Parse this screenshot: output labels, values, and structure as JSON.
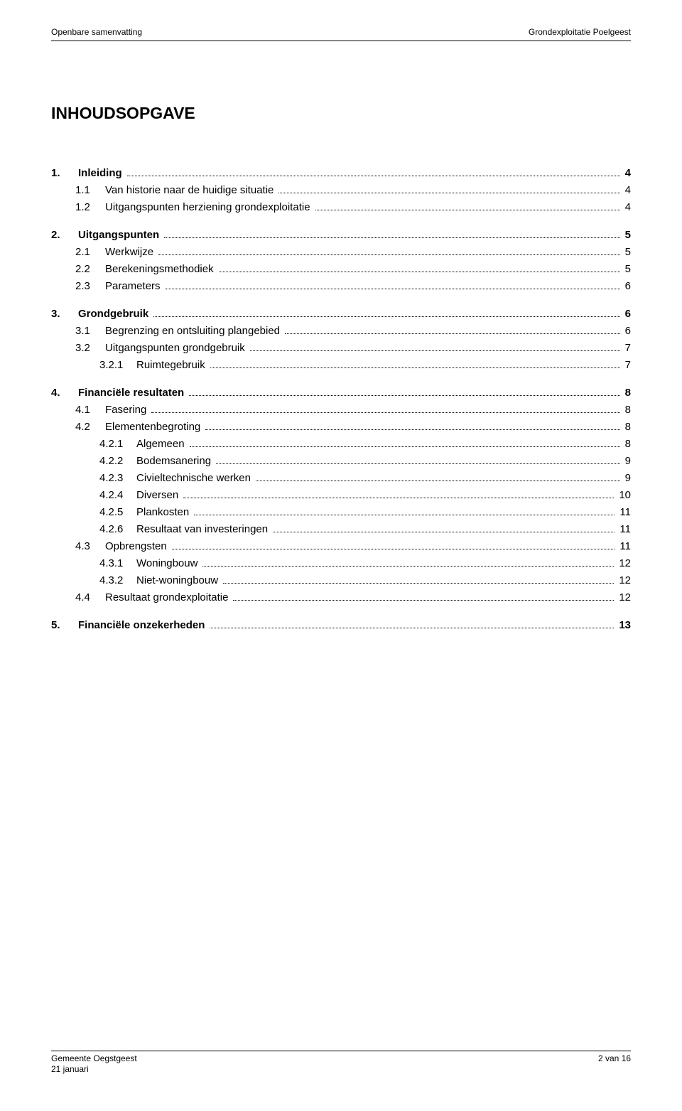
{
  "header": {
    "left": "Openbare samenvatting",
    "right": "Grondexploitatie Poelgeest"
  },
  "title": "INHOUDSOPGAVE",
  "toc": [
    {
      "level": 1,
      "num": "1.",
      "label": "Inleiding",
      "page": "4"
    },
    {
      "level": 2,
      "num": "1.1",
      "label": "Van historie naar de huidige situatie",
      "page": "4"
    },
    {
      "level": 2,
      "num": "1.2",
      "label": "Uitgangspunten herziening grondexploitatie",
      "page": "4"
    },
    {
      "level": 1,
      "num": "2.",
      "label": "Uitgangspunten",
      "page": "5"
    },
    {
      "level": 2,
      "num": "2.1",
      "label": "Werkwijze",
      "page": "5"
    },
    {
      "level": 2,
      "num": "2.2",
      "label": "Berekeningsmethodiek",
      "page": "5"
    },
    {
      "level": 2,
      "num": "2.3",
      "label": "Parameters",
      "page": "6"
    },
    {
      "level": 1,
      "num": "3.",
      "label": "Grondgebruik",
      "page": "6"
    },
    {
      "level": 2,
      "num": "3.1",
      "label": "Begrenzing en ontsluiting plangebied",
      "page": "6"
    },
    {
      "level": 2,
      "num": "3.2",
      "label": "Uitgangspunten grondgebruik",
      "page": "7"
    },
    {
      "level": 3,
      "num": "3.2.1",
      "label": "Ruimtegebruik",
      "page": "7"
    },
    {
      "level": 1,
      "num": "4.",
      "label": "Financiële resultaten",
      "page": "8"
    },
    {
      "level": 2,
      "num": "4.1",
      "label": "Fasering",
      "page": "8"
    },
    {
      "level": 2,
      "num": "4.2",
      "label": "Elementenbegroting",
      "page": "8"
    },
    {
      "level": 3,
      "num": "4.2.1",
      "label": "Algemeen",
      "page": "8"
    },
    {
      "level": 3,
      "num": "4.2.2",
      "label": "Bodemsanering",
      "page": "9"
    },
    {
      "level": 3,
      "num": "4.2.3",
      "label": "Civieltechnische werken",
      "page": "9"
    },
    {
      "level": 3,
      "num": "4.2.4",
      "label": "Diversen",
      "page": "10"
    },
    {
      "level": 3,
      "num": "4.2.5",
      "label": "Plankosten",
      "page": "11"
    },
    {
      "level": 3,
      "num": "4.2.6",
      "label": "Resultaat van investeringen",
      "page": "11"
    },
    {
      "level": 2,
      "num": "4.3",
      "label": "Opbrengsten",
      "page": "11"
    },
    {
      "level": 3,
      "num": "4.3.1",
      "label": "Woningbouw",
      "page": "12"
    },
    {
      "level": 3,
      "num": "4.3.2",
      "label": "Niet-woningbouw",
      "page": "12"
    },
    {
      "level": 2,
      "num": "4.4",
      "label": "Resultaat grondexploitatie",
      "page": "12"
    },
    {
      "level": 1,
      "num": "5.",
      "label": "Financiële onzekerheden",
      "page": "13"
    }
  ],
  "footer": {
    "left_line1": "Gemeente Oegstgeest",
    "left_line2": "21 januari",
    "right": "2 van 16"
  }
}
